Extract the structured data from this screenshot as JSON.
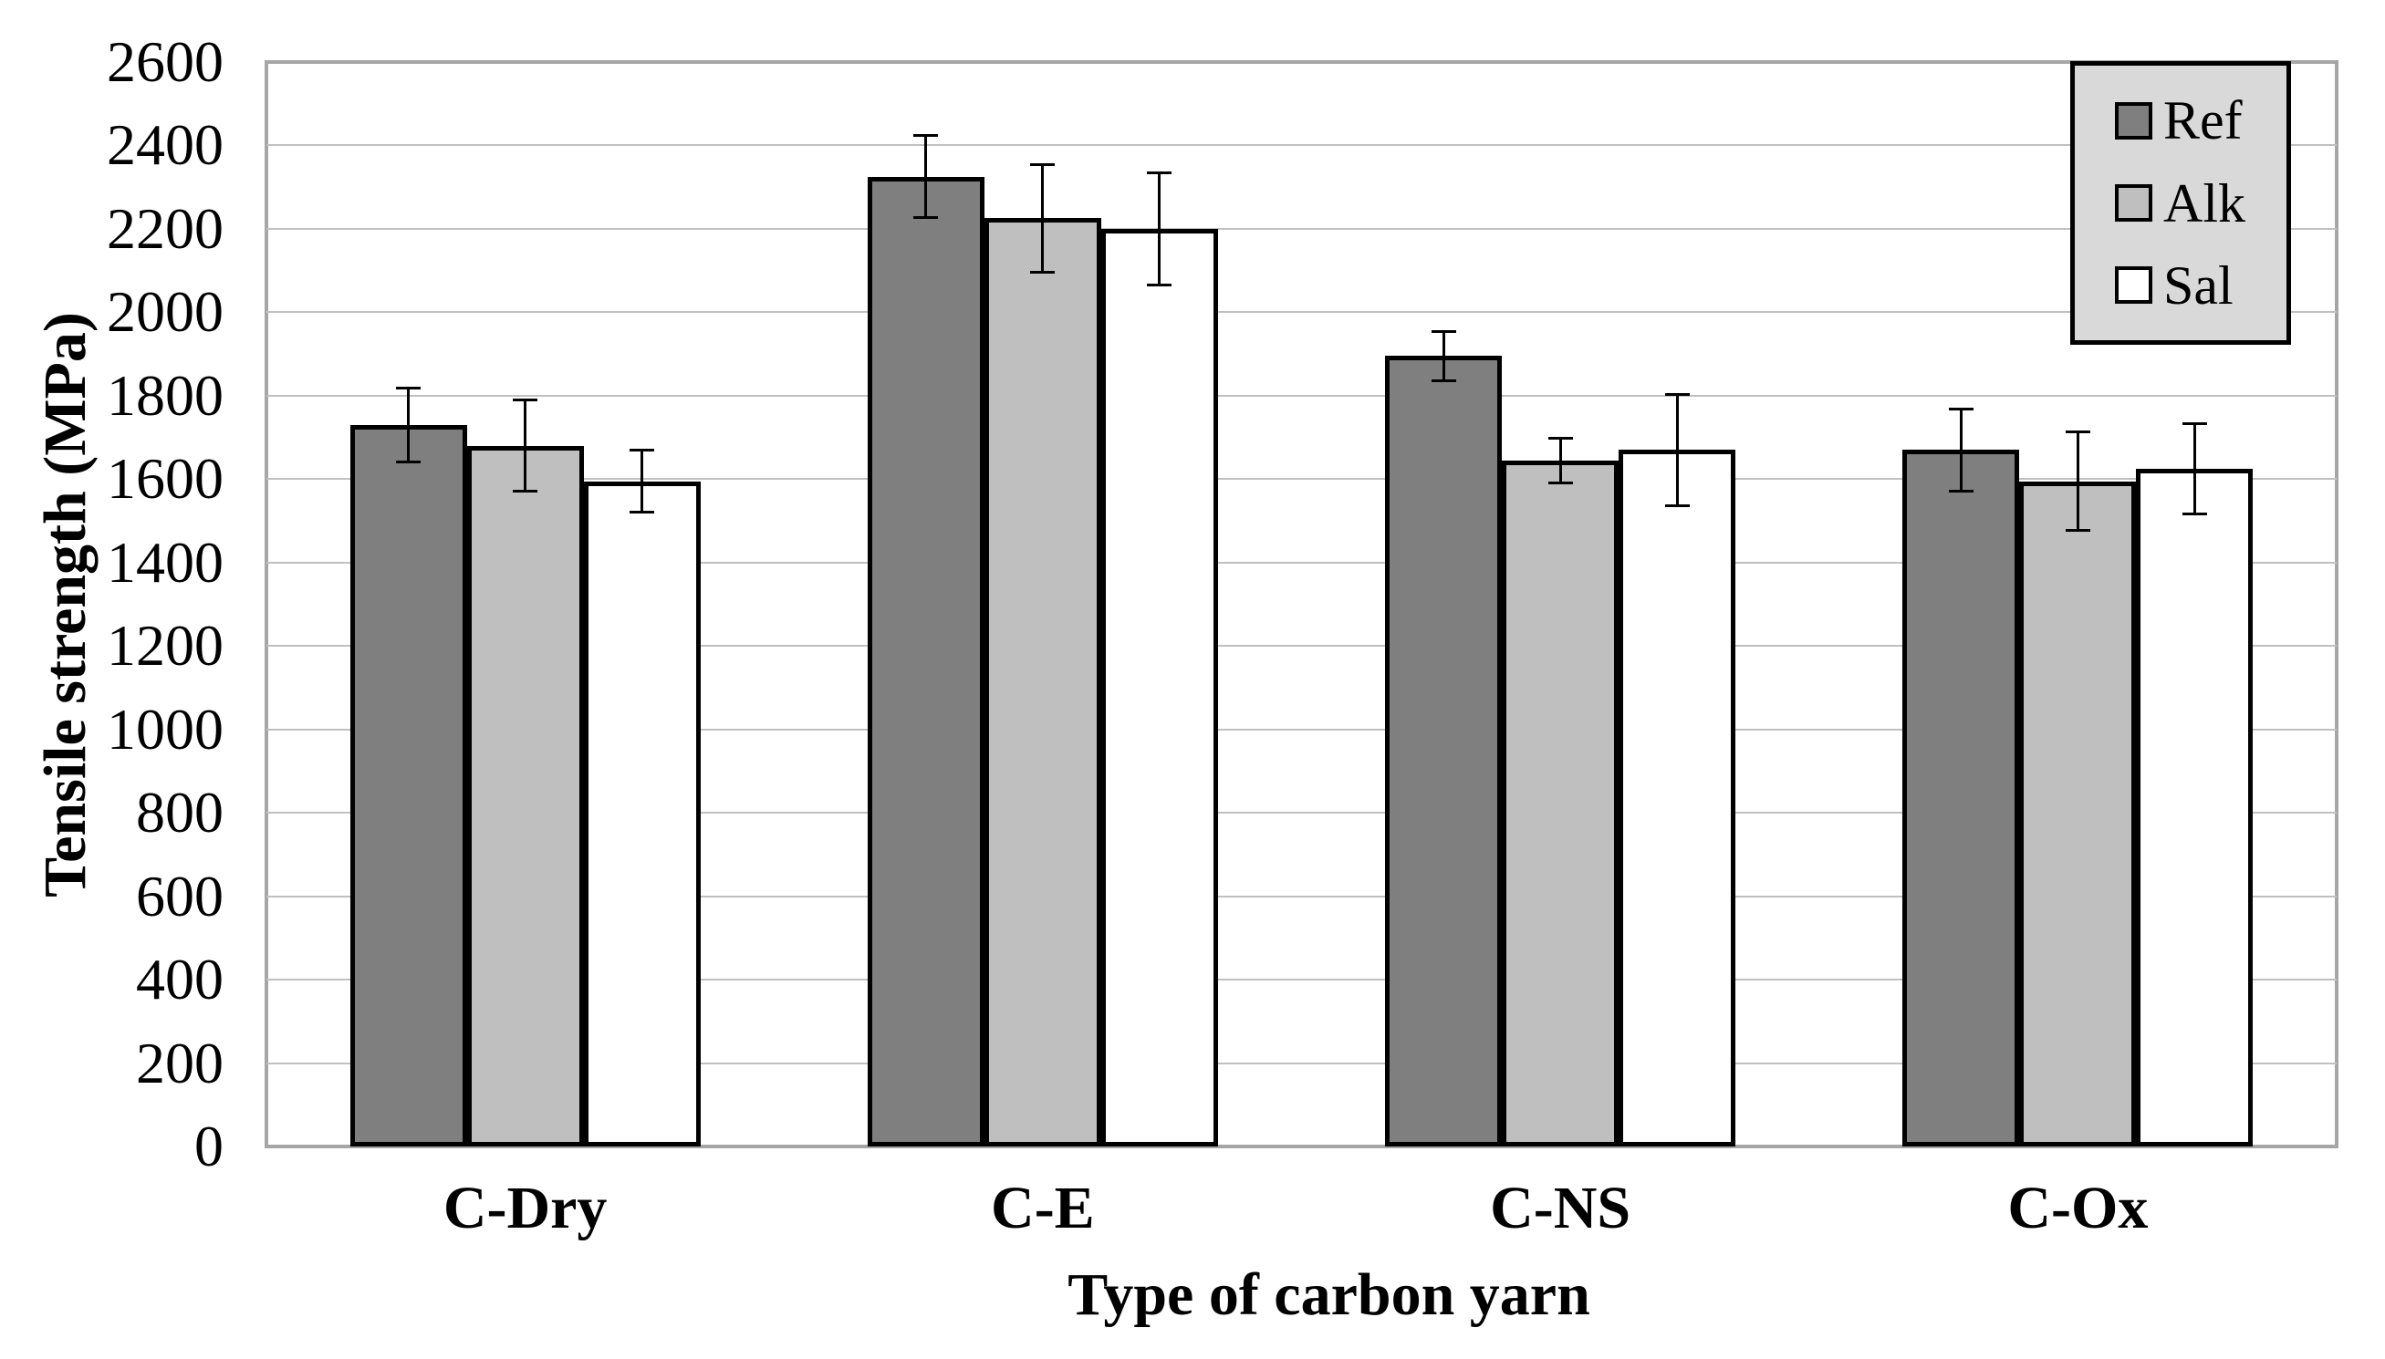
{
  "chart_data": {
    "type": "bar",
    "title": "",
    "xlabel": "Type of carbon yarn",
    "ylabel": "Tensile strength (MPa)",
    "categories": [
      "C-Dry",
      "C-E",
      "C-NS",
      "C-Ox"
    ],
    "series": [
      {
        "name": "Ref",
        "color": "#7f7f7f",
        "values": [
          1730,
          2325,
          1895,
          1670
        ],
        "errors": [
          90,
          100,
          60,
          100
        ]
      },
      {
        "name": "Alk",
        "color": "#bfbfbf",
        "values": [
          1680,
          2225,
          1645,
          1595
        ],
        "errors": [
          110,
          130,
          55,
          120
        ]
      },
      {
        "name": "Sal",
        "color": "#ffffff",
        "values": [
          1595,
          2200,
          1670,
          1625
        ],
        "errors": [
          75,
          135,
          135,
          110
        ]
      }
    ],
    "ylim": [
      0,
      2600
    ],
    "ytick_step": 200,
    "yticks": [
      0,
      200,
      400,
      600,
      800,
      1000,
      1200,
      1400,
      1600,
      1800,
      2000,
      2200,
      2400,
      2600
    ],
    "grid": "horizontal-major",
    "legend_position": "top-right",
    "error_bars": true
  },
  "colors": {
    "background": "#ffffff",
    "plot_border": "#a6a6a6",
    "gridline": "#c0c0c0",
    "bar_border": "#000000",
    "error_bar": "#000000",
    "legend_background": "#d9d9d9",
    "legend_border": "#000000",
    "text": "#000000"
  }
}
